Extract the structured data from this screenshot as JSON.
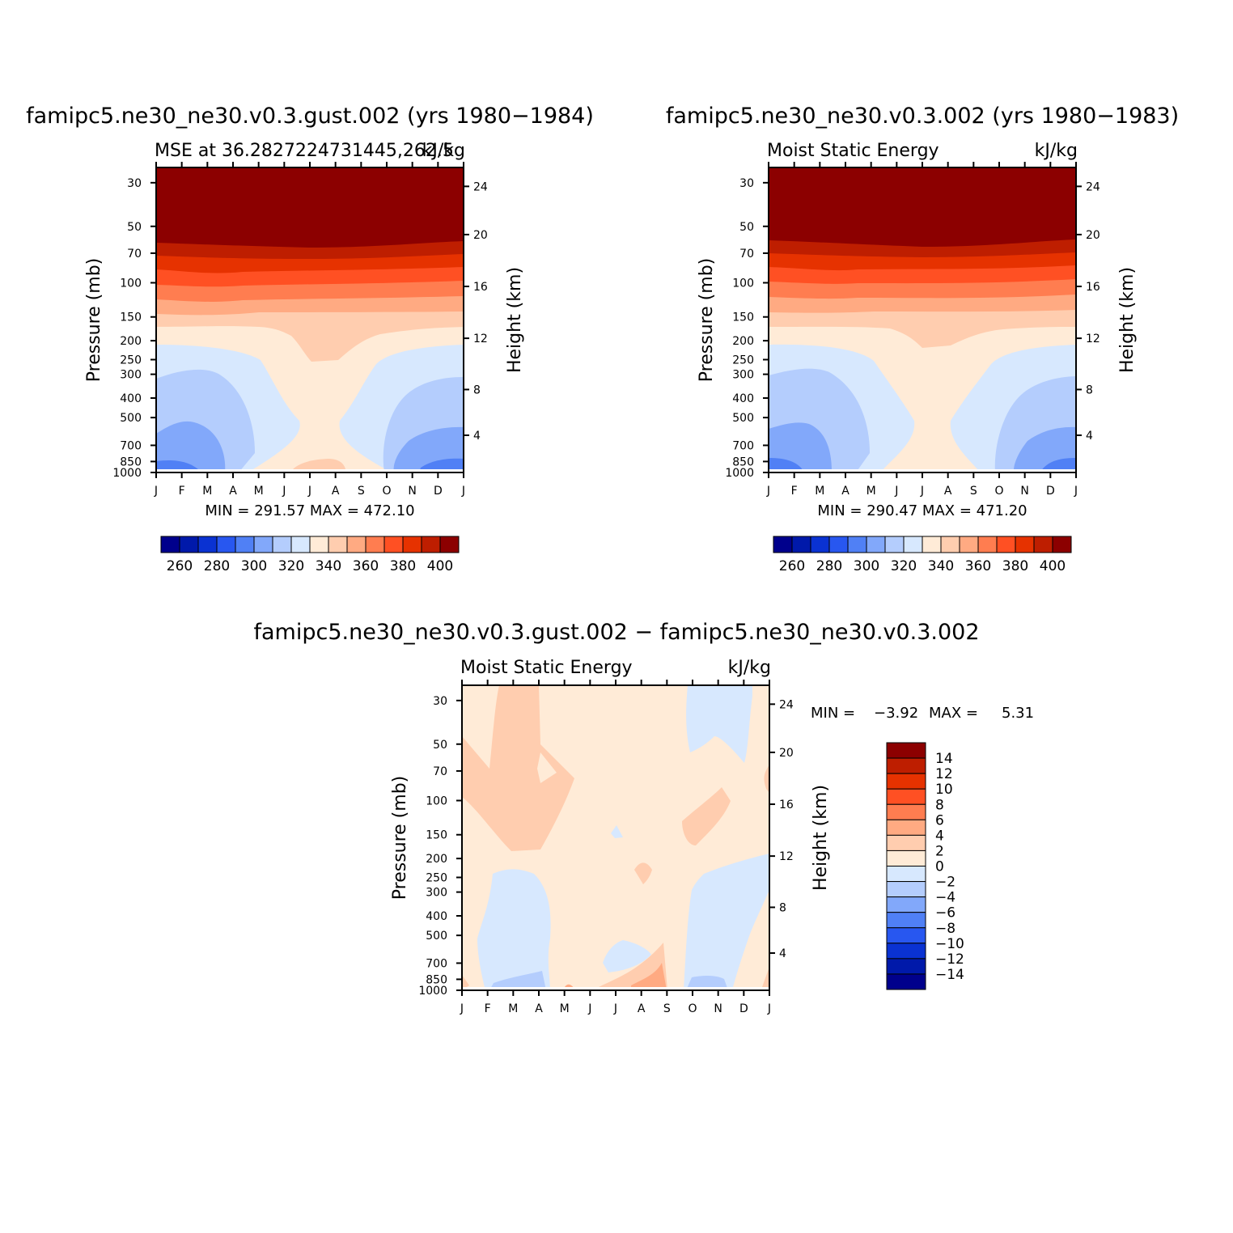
{
  "chart_data": [
    {
      "type": "contour",
      "title": "famipc5.ne30_ne30.v0.3.gust.002 (yrs 1980−1984)",
      "left_label": "MSE at 36.2827224731445,262.5",
      "right_label": "kJ/kg",
      "ylabel": "Pressure (mb)",
      "ylabel_right": "Height (km)",
      "x_ticks": [
        "J",
        "F",
        "M",
        "A",
        "M",
        "J",
        "J",
        "A",
        "S",
        "O",
        "N",
        "D",
        "J"
      ],
      "y_ticks": [
        "30",
        "50",
        "70",
        "100",
        "150",
        "200",
        "250",
        "300",
        "400",
        "500",
        "700",
        "850",
        "1000"
      ],
      "y_ticks_right": [
        "24",
        "20",
        "16",
        "12",
        "8",
        "4"
      ],
      "stats": "MIN = 291.57 MAX = 472.10",
      "colorbar": {
        "orientation": "horizontal",
        "levels": [
          250,
          260,
          270,
          280,
          290,
          300,
          310,
          320,
          330,
          340,
          350,
          360,
          370,
          380,
          390,
          400
        ],
        "labels": [
          "260",
          "280",
          "300",
          "320",
          "340",
          "360",
          "380",
          "400"
        ],
        "colors": [
          "#00008c",
          "#0019aa",
          "#0a32d2",
          "#2857f0",
          "#5080f5",
          "#82a8fa",
          "#b4cdfd",
          "#d7e8fe",
          "#ffebd7",
          "#ffcdaf",
          "#ffaa82",
          "#ff7d50",
          "#ff5023",
          "#e63200",
          "#be1e00",
          "#8c0000"
        ]
      }
    },
    {
      "type": "contour",
      "title": "famipc5.ne30_ne30.v0.3.002 (yrs 1980−1983)",
      "left_label": "Moist Static Energy",
      "right_label": "kJ/kg",
      "ylabel": "Pressure (mb)",
      "ylabel_right": "Height (km)",
      "x_ticks": [
        "J",
        "F",
        "M",
        "A",
        "M",
        "J",
        "J",
        "A",
        "S",
        "O",
        "N",
        "D",
        "J"
      ],
      "y_ticks": [
        "30",
        "50",
        "70",
        "100",
        "150",
        "200",
        "250",
        "300",
        "400",
        "500",
        "700",
        "850",
        "1000"
      ],
      "y_ticks_right": [
        "24",
        "20",
        "16",
        "12",
        "8",
        "4"
      ],
      "stats": "MIN = 290.47 MAX = 471.20",
      "colorbar": {
        "orientation": "horizontal",
        "levels": [
          250,
          260,
          270,
          280,
          290,
          300,
          310,
          320,
          330,
          340,
          350,
          360,
          370,
          380,
          390,
          400
        ],
        "labels": [
          "260",
          "280",
          "300",
          "320",
          "340",
          "360",
          "380",
          "400"
        ],
        "colors": [
          "#00008c",
          "#0019aa",
          "#0a32d2",
          "#2857f0",
          "#5080f5",
          "#82a8fa",
          "#b4cdfd",
          "#d7e8fe",
          "#ffebd7",
          "#ffcdaf",
          "#ffaa82",
          "#ff7d50",
          "#ff5023",
          "#e63200",
          "#be1e00",
          "#8c0000"
        ]
      }
    },
    {
      "type": "contour",
      "title": "famipc5.ne30_ne30.v0.3.gust.002 − famipc5.ne30_ne30.v0.3.002",
      "left_label": "Moist Static Energy",
      "right_label": "kJ/kg",
      "ylabel": "Pressure (mb)",
      "ylabel_right": "Height (km)",
      "x_ticks": [
        "J",
        "F",
        "M",
        "A",
        "M",
        "J",
        "J",
        "A",
        "S",
        "O",
        "N",
        "D",
        "J"
      ],
      "y_ticks": [
        "30",
        "50",
        "70",
        "100",
        "150",
        "200",
        "250",
        "300",
        "400",
        "500",
        "700",
        "850",
        "1000"
      ],
      "y_ticks_right": [
        "24",
        "20",
        "16",
        "12",
        "8",
        "4"
      ],
      "stats_min_label": "MIN =",
      "stats_min_value": "−3.92",
      "stats_max_label": "MAX =",
      "stats_max_value": "5.31",
      "colorbar": {
        "orientation": "vertical",
        "labels": [
          "14",
          "12",
          "10",
          "8",
          "6",
          "4",
          "2",
          "0",
          "−2",
          "−4",
          "−6",
          "−8",
          "−10",
          "−12",
          "−14"
        ],
        "colors": [
          "#8c0000",
          "#be1e00",
          "#e63200",
          "#ff5023",
          "#ff7d50",
          "#ffaa82",
          "#ffcdaf",
          "#ffebd7",
          "#d7e8fe",
          "#b4cdfd",
          "#82a8fa",
          "#5080f5",
          "#2857f0",
          "#0a32d2",
          "#0019aa",
          "#00008c"
        ]
      }
    }
  ],
  "colors": {
    "dark_red": "#8c0000",
    "red1": "#be1e00",
    "red2": "#e63200",
    "orange1": "#ff5023",
    "orange2": "#ff7d50",
    "salmon": "#ffaa82",
    "peach": "#ffcdaf",
    "cream": "#ffebd7",
    "pale_blue": "#d7e8fe",
    "light_blue": "#b4cdfd",
    "mid_blue": "#82a8fa",
    "blue": "#5080f5"
  }
}
